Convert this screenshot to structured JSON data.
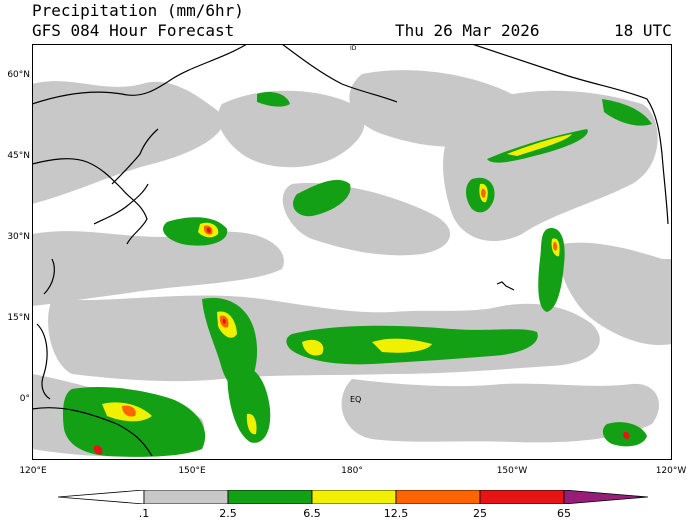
{
  "header": {
    "title_line_1": "Precipitation (mm/6hr)",
    "title_line_2": "GFS 084 Hour Forecast",
    "valid_date": "Thu 26 Mar 2026",
    "valid_time": "18 UTC"
  },
  "map": {
    "lat_labels": [
      "60°N",
      "45°N",
      "30°N",
      "15°N",
      "0°"
    ],
    "lon_labels": [
      "120°E",
      "150°E",
      "180°",
      "150°W",
      "120°W"
    ],
    "annotations": [
      "EQ",
      "ID"
    ]
  },
  "colorbar": {
    "thresholds": [
      ".1",
      "2.5",
      "6.5",
      "12.5",
      "25",
      "65"
    ],
    "colors": [
      "#ffffff",
      "#c8c8c8",
      "#14a014",
      "#f0f000",
      "#ff6400",
      "#e61414",
      "#961e78"
    ],
    "units": "mm/6hr"
  },
  "colors": {
    "light": "#c8c8c8",
    "moderate": "#14a014",
    "heavy": "#f0f000",
    "very_heavy": "#ff6400",
    "intense": "#e61414",
    "coast": "#000000"
  }
}
